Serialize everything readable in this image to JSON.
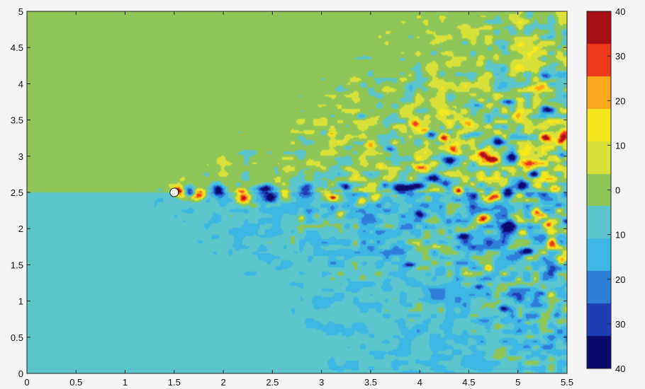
{
  "chart_data": {
    "type": "heatmap",
    "title": "",
    "xlabel": "",
    "ylabel": "",
    "xlim": [
      0,
      5.5
    ],
    "ylim": [
      0,
      5
    ],
    "xticks": [
      "0",
      "0.5",
      "1",
      "1.5",
      "2",
      "2.5",
      "3",
      "3.5",
      "4",
      "4.5",
      "5",
      "5.5"
    ],
    "yticks": [
      "0",
      "0.5",
      "1",
      "1.5",
      "2",
      "2.5",
      "3",
      "3.5",
      "4",
      "4.5",
      "5"
    ],
    "colorbar": {
      "range": [
        -40,
        40
      ],
      "tick_values": [
        40,
        30,
        20,
        10,
        0,
        -10,
        -20,
        -30,
        -40
      ],
      "tick_labels": [
        "40",
        "30",
        "20",
        "10",
        "0",
        "10",
        "20",
        "30",
        "40"
      ],
      "colors": [
        "#0b0b6e",
        "#1f3fb5",
        "#2f7fd8",
        "#3fb7e4",
        "#5cc6cc",
        "#8fc657",
        "#d8e03a",
        "#f6e81e",
        "#f8a81a",
        "#ee3a1c",
        "#a50f15"
      ]
    },
    "background": {
      "upper_value": 0,
      "lower_value": -10,
      "split_y": 2.5,
      "upper_color": "#8fc657",
      "lower_color": "#5cc6cc"
    },
    "marker": {
      "x": 1.5,
      "y": 2.5,
      "color": "#ffffff"
    },
    "blobs": [
      [
        1.53,
        2.52,
        0.05,
        0.06,
        30
      ],
      [
        1.6,
        2.47,
        0.07,
        0.06,
        25
      ],
      [
        1.65,
        2.51,
        0.06,
        0.07,
        -35
      ],
      [
        1.76,
        2.48,
        0.06,
        0.07,
        28
      ],
      [
        1.72,
        2.43,
        0.05,
        0.04,
        15
      ],
      [
        1.95,
        2.53,
        0.06,
        0.08,
        -30
      ],
      [
        2.2,
        2.42,
        0.07,
        0.08,
        32
      ],
      [
        2.18,
        2.52,
        0.05,
        0.04,
        18
      ],
      [
        2.44,
        2.55,
        0.08,
        0.06,
        -32
      ],
      [
        2.48,
        2.42,
        0.06,
        0.05,
        -25
      ],
      [
        2.62,
        2.49,
        0.05,
        0.06,
        18
      ],
      [
        2.85,
        2.55,
        0.07,
        0.08,
        -28
      ],
      [
        3.05,
        2.47,
        0.06,
        0.05,
        22
      ],
      [
        3.12,
        2.43,
        0.04,
        0.04,
        30
      ],
      [
        3.25,
        2.58,
        0.05,
        0.05,
        -26
      ],
      [
        3.4,
        2.38,
        0.05,
        0.06,
        18
      ],
      [
        3.55,
        2.42,
        0.06,
        0.06,
        24
      ],
      [
        3.65,
        2.6,
        0.05,
        0.05,
        -30
      ],
      [
        3.8,
        2.55,
        0.08,
        0.06,
        -35
      ],
      [
        3.98,
        2.58,
        0.1,
        0.06,
        -38
      ],
      [
        4.08,
        2.41,
        0.05,
        0.06,
        20
      ],
      [
        4.25,
        2.62,
        0.07,
        0.05,
        -30
      ],
      [
        4.4,
        2.52,
        0.05,
        0.05,
        22
      ],
      [
        4.55,
        2.45,
        0.06,
        0.05,
        -25
      ],
      [
        4.75,
        2.44,
        0.08,
        0.06,
        30
      ],
      [
        4.9,
        2.5,
        0.06,
        0.08,
        -35
      ],
      [
        5.05,
        2.6,
        0.07,
        0.06,
        -32
      ],
      [
        5.2,
        2.6,
        0.06,
        0.05,
        26
      ],
      [
        5.38,
        2.55,
        0.05,
        0.05,
        20
      ],
      [
        3.95,
        3.45,
        0.06,
        0.07,
        30
      ],
      [
        4.05,
        3.35,
        0.04,
        0.04,
        20
      ],
      [
        4.12,
        3.3,
        0.06,
        0.05,
        -30
      ],
      [
        4.25,
        3.25,
        0.05,
        0.06,
        28
      ],
      [
        4.35,
        3.1,
        0.06,
        0.06,
        25
      ],
      [
        4.3,
        2.95,
        0.06,
        0.05,
        -30
      ],
      [
        4.55,
        3.3,
        0.07,
        0.05,
        -28
      ],
      [
        4.65,
        3.0,
        0.07,
        0.08,
        28
      ],
      [
        4.75,
        2.95,
        0.05,
        0.04,
        32
      ],
      [
        4.8,
        3.2,
        0.05,
        0.05,
        -30
      ],
      [
        4.95,
        3.0,
        0.07,
        0.08,
        -32
      ],
      [
        5.1,
        2.9,
        0.06,
        0.05,
        26
      ],
      [
        5.15,
        2.75,
        0.06,
        0.05,
        -30
      ],
      [
        5.3,
        3.25,
        0.07,
        0.07,
        30
      ],
      [
        5.45,
        3.25,
        0.05,
        0.08,
        28
      ],
      [
        5.45,
        3.0,
        0.04,
        0.05,
        -25
      ],
      [
        5.0,
        3.55,
        0.06,
        0.05,
        24
      ],
      [
        4.9,
        3.75,
        0.08,
        0.04,
        -28
      ],
      [
        5.2,
        3.95,
        0.08,
        0.05,
        20
      ],
      [
        5.3,
        3.65,
        0.07,
        0.05,
        -25
      ],
      [
        4.5,
        3.45,
        0.06,
        0.05,
        15
      ],
      [
        3.5,
        3.15,
        0.05,
        0.05,
        20
      ],
      [
        3.7,
        3.1,
        0.05,
        0.04,
        -22
      ],
      [
        4.0,
        2.85,
        0.08,
        0.05,
        22
      ],
      [
        4.15,
        2.7,
        0.1,
        0.06,
        -30
      ],
      [
        3.6,
        2.85,
        0.04,
        0.04,
        15
      ],
      [
        4.65,
        2.15,
        0.07,
        0.06,
        30
      ],
      [
        4.9,
        2.05,
        0.07,
        0.09,
        -30
      ],
      [
        5.05,
        1.95,
        0.05,
        0.05,
        25
      ],
      [
        5.2,
        2.2,
        0.07,
        0.06,
        28
      ],
      [
        5.3,
        2.05,
        0.06,
        0.05,
        32
      ],
      [
        5.35,
        1.8,
        0.06,
        0.07,
        30
      ],
      [
        5.45,
        1.55,
        0.05,
        0.06,
        26
      ],
      [
        4.45,
        1.9,
        0.06,
        0.05,
        -28
      ],
      [
        4.3,
        2.1,
        0.05,
        0.05,
        -25
      ],
      [
        4.15,
        1.75,
        0.05,
        0.04,
        18
      ],
      [
        4.0,
        2.2,
        0.05,
        0.05,
        -22
      ],
      [
        3.85,
        1.95,
        0.05,
        0.04,
        16
      ],
      [
        4.55,
        1.6,
        0.04,
        0.04,
        16
      ],
      [
        5.1,
        1.7,
        0.06,
        0.04,
        -25
      ],
      [
        4.7,
        1.45,
        0.05,
        0.04,
        15
      ],
      [
        3.2,
        2.2,
        0.05,
        0.04,
        14
      ],
      [
        2.8,
        2.15,
        0.04,
        0.04,
        12
      ],
      [
        3.9,
        1.5,
        0.06,
        0.03,
        -20
      ],
      [
        5.25,
        1.1,
        0.05,
        0.04,
        -20
      ],
      [
        5.4,
        0.8,
        0.04,
        0.05,
        -18
      ],
      [
        5.1,
        0.7,
        0.05,
        0.03,
        12
      ],
      [
        4.85,
        0.9,
        0.06,
        0.04,
        -22
      ],
      [
        4.6,
        1.2,
        0.05,
        0.03,
        -18
      ],
      [
        5.0,
        1.3,
        0.05,
        0.04,
        14
      ],
      [
        3.4,
        3.55,
        0.05,
        0.04,
        -16
      ],
      [
        3.1,
        3.3,
        0.04,
        0.04,
        12
      ],
      [
        4.6,
        3.7,
        0.06,
        0.04,
        -20
      ],
      [
        5.3,
        4.1,
        0.06,
        0.04,
        -15
      ],
      [
        4.3,
        3.6,
        0.04,
        0.04,
        14
      ]
    ],
    "noise_seed": 20230517
  }
}
